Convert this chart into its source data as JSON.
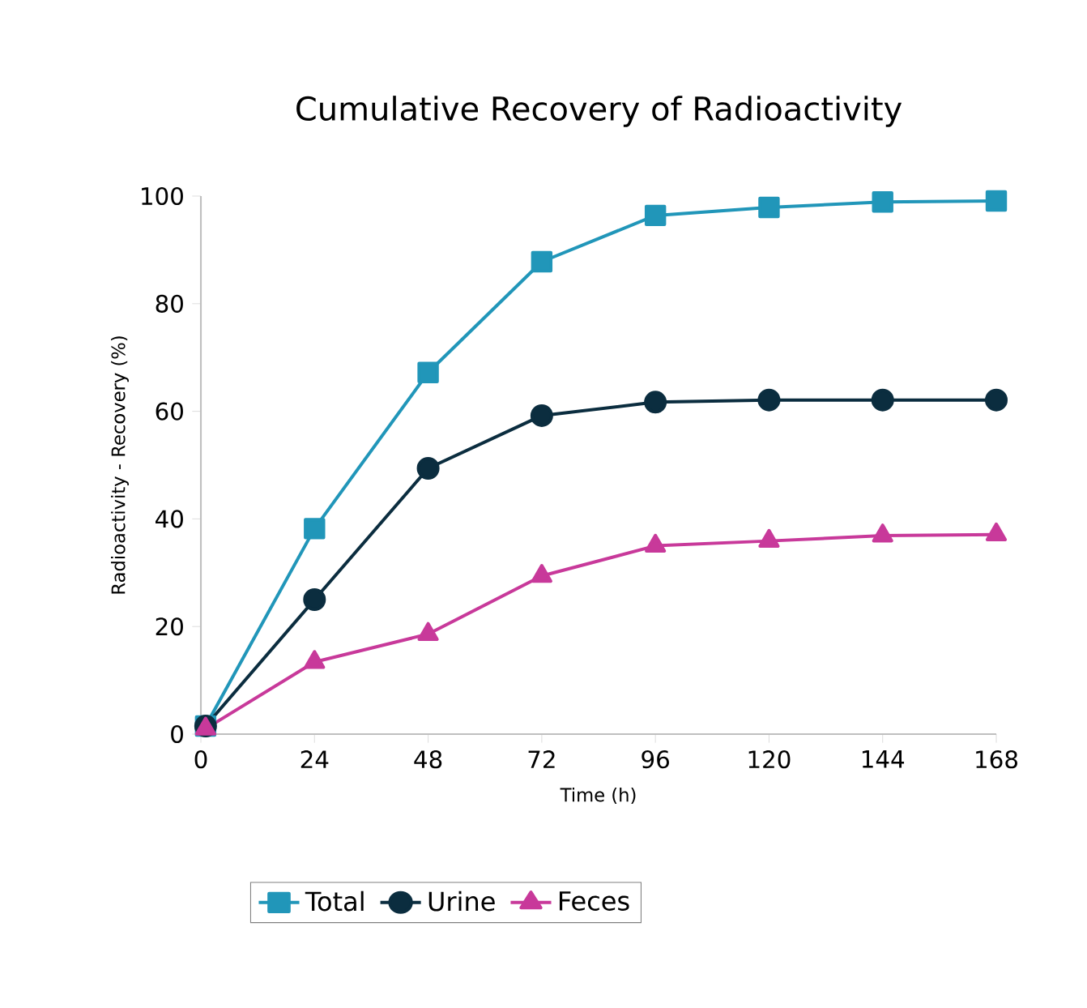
{
  "chart_data": {
    "type": "line",
    "title": "Cumulative Recovery of Radioactivity",
    "xlabel": "Time (h)",
    "ylabel": "Radioactivity - Recovery (%)",
    "xlim": [
      0,
      168
    ],
    "xticks": [
      0,
      24,
      48,
      72,
      96,
      120,
      144,
      168
    ],
    "ylim": [
      0,
      100
    ],
    "yticks": [
      0,
      20,
      40,
      60,
      80,
      100
    ],
    "grid": false,
    "legend": "bottom",
    "series": [
      {
        "name": "Total",
        "color": "#2196b9",
        "marker": "square",
        "x": [
          1,
          24,
          48,
          72,
          96,
          120,
          144,
          168
        ],
        "values": [
          1.5,
          38.2,
          67.2,
          87.8,
          96.4,
          97.9,
          98.9,
          99.1
        ]
      },
      {
        "name": "Urine",
        "color": "#0b2d3f",
        "marker": "circle",
        "x": [
          1,
          24,
          48,
          72,
          96,
          120,
          144,
          168
        ],
        "values": [
          1.5,
          25,
          49.4,
          59.2,
          61.7,
          62.1,
          62.1,
          62.1
        ]
      },
      {
        "name": "Feces",
        "color": "#c8399a",
        "marker": "triangle",
        "x": [
          1,
          24,
          48,
          72,
          96,
          120,
          144,
          168
        ],
        "values": [
          1,
          13.4,
          18.6,
          29.4,
          35,
          35.9,
          36.9,
          37.1
        ]
      }
    ]
  }
}
